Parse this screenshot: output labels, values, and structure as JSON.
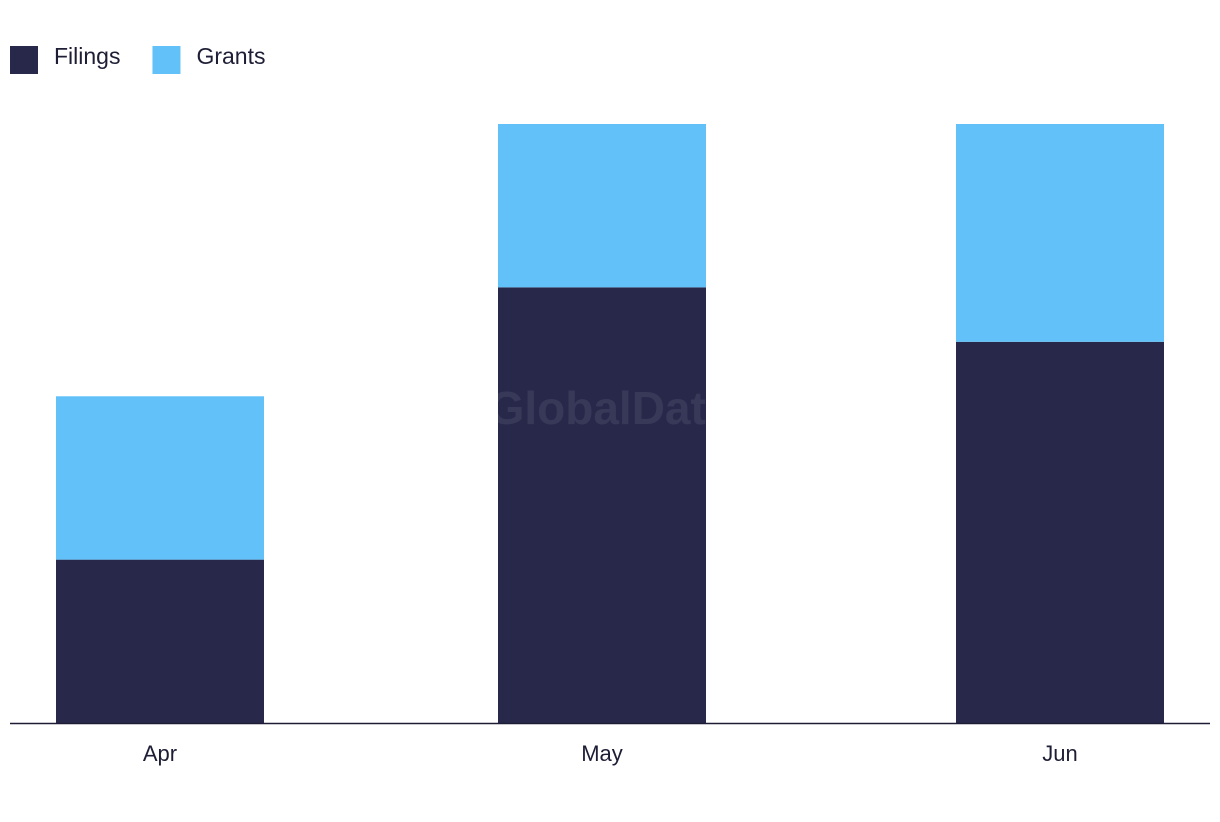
{
  "chart_data": {
    "type": "stacked_bar",
    "watermark": "GlobalData",
    "categories": [
      "Apr",
      "May",
      "Jun"
    ],
    "series": [
      {
        "name": "Filings",
        "color": "#28284b",
        "values": [
          3,
          8,
          7
        ]
      },
      {
        "name": "Grants",
        "color": "#62c1f9",
        "values": [
          3,
          3,
          4
        ]
      }
    ],
    "legend": "top-left"
  }
}
